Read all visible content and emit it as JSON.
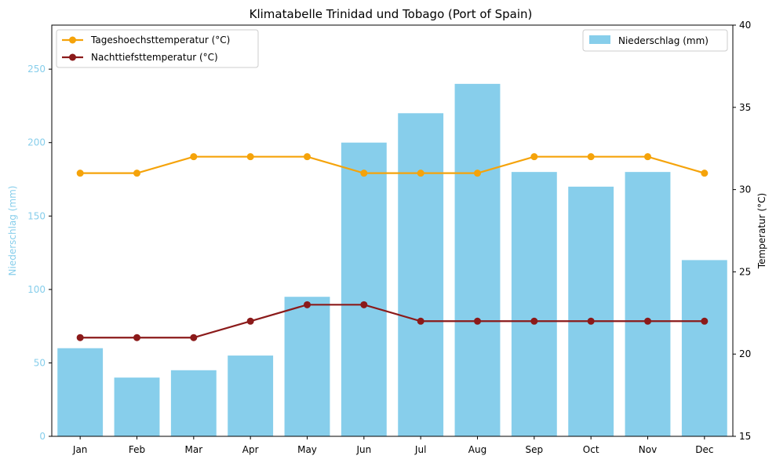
{
  "chart_data": {
    "type": "bar",
    "title": "Klimatabelle Trinidad und Tobago (Port of Spain)",
    "categories": [
      "Jan",
      "Feb",
      "Mar",
      "Apr",
      "May",
      "Jun",
      "Jul",
      "Aug",
      "Sep",
      "Oct",
      "Nov",
      "Dec"
    ],
    "y_left": {
      "label": "Niederschlag (mm)",
      "ylim": [
        0,
        280
      ],
      "ticks": [
        "0",
        "50",
        "100",
        "150",
        "200",
        "250"
      ],
      "color": "#87ceeb"
    },
    "y_right": {
      "label": "Temperatur (°C)",
      "ylim": [
        15,
        40
      ],
      "ticks": [
        "15",
        "20",
        "25",
        "30",
        "35",
        "40"
      ]
    },
    "bars": {
      "name": "Niederschlag (mm)",
      "color": "#87ceeb",
      "values": [
        60,
        40,
        45,
        55,
        95,
        200,
        220,
        240,
        180,
        170,
        180,
        120
      ]
    },
    "lines": [
      {
        "name": "Tageshoechsttemperatur (°C)",
        "color": "#f5a30a",
        "values": [
          31,
          31,
          32,
          32,
          32,
          31,
          31,
          31,
          32,
          32,
          32,
          31
        ]
      },
      {
        "name": "Nachttiefsttemperatur (°C)",
        "color": "#8b1a1a",
        "values": [
          21,
          21,
          21,
          22,
          23,
          23,
          22,
          22,
          22,
          22,
          22,
          22
        ]
      }
    ],
    "legend_left_position": "top-left",
    "legend_right_position": "top-right",
    "grid": false
  }
}
